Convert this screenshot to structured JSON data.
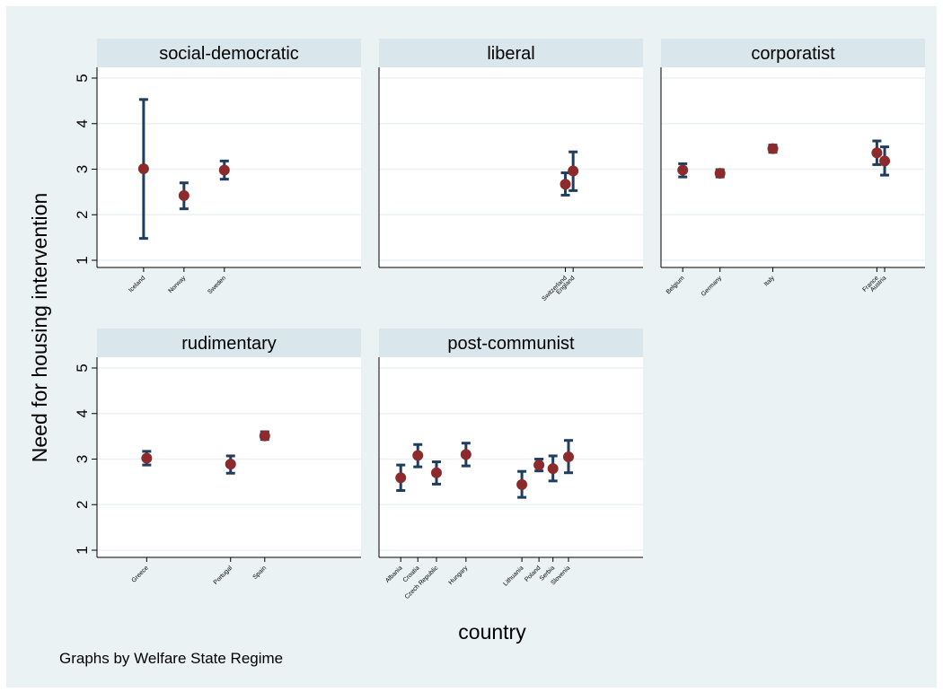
{
  "chart_data": {
    "type": "scatter",
    "subtype": "point estimates with confidence intervals, faceted by group",
    "ylabel": "Need for housing intervention",
    "xlabel": "country",
    "note": "Graphs by Welfare State Regime",
    "ylim": [
      1,
      5
    ],
    "yticks": [
      1,
      2,
      3,
      4,
      5
    ],
    "grid": true,
    "colors": {
      "background": "#eaf2f3",
      "plot_background": "#ffffff",
      "header_background": "#d9e6eb",
      "marker": "#8c2a2c",
      "error_bar": "#1f3d5e",
      "grid": "#eaf2f3"
    },
    "panels": [
      {
        "title": "social-democratic",
        "xlim": [
          0.5,
          9
        ],
        "points": [
          {
            "country": "Iceland",
            "x": 2,
            "y": 3.01,
            "lo": 1.48,
            "hi": 4.53
          },
          {
            "country": "Norway",
            "x": 3.3,
            "y": 2.42,
            "lo": 2.13,
            "hi": 2.7
          },
          {
            "country": "Sweden",
            "x": 4.6,
            "y": 2.98,
            "lo": 2.78,
            "hi": 3.18
          }
        ]
      },
      {
        "title": "liberal",
        "xlim": [
          0.5,
          9
        ],
        "points": [
          {
            "country": "Switzerland",
            "x": 6.5,
            "y": 2.67,
            "lo": 2.43,
            "hi": 2.92
          },
          {
            "country": "England",
            "x": 6.75,
            "y": 2.96,
            "lo": 2.53,
            "hi": 3.38
          }
        ]
      },
      {
        "title": "corporatist",
        "xlim": [
          0.5,
          9
        ],
        "points": [
          {
            "country": "Belgium",
            "x": 1.2,
            "y": 2.98,
            "lo": 2.83,
            "hi": 3.12
          },
          {
            "country": "Germany",
            "x": 2.4,
            "y": 2.91,
            "lo": 2.83,
            "hi": 2.99
          },
          {
            "country": "Italy",
            "x": 4.1,
            "y": 3.45,
            "lo": 3.37,
            "hi": 3.53
          },
          {
            "country": "France",
            "x": 7.45,
            "y": 3.36,
            "lo": 3.1,
            "hi": 3.62
          },
          {
            "country": "Austria",
            "x": 7.7,
            "y": 3.18,
            "lo": 2.87,
            "hi": 3.49
          }
        ]
      },
      {
        "title": "rudimentary",
        "xlim": [
          0.5,
          9
        ],
        "points": [
          {
            "country": "Greece",
            "x": 2.1,
            "y": 3.02,
            "lo": 2.87,
            "hi": 3.17
          },
          {
            "country": "Portugal",
            "x": 4.8,
            "y": 2.89,
            "lo": 2.69,
            "hi": 3.07
          },
          {
            "country": "Spain",
            "x": 5.9,
            "y": 3.51,
            "lo": 3.43,
            "hi": 3.6
          }
        ]
      },
      {
        "title": "post-communist",
        "xlim": [
          0.5,
          9
        ],
        "points": [
          {
            "country": "Albania",
            "x": 1.2,
            "y": 2.59,
            "lo": 2.31,
            "hi": 2.87
          },
          {
            "country": "Croatia",
            "x": 1.75,
            "y": 3.08,
            "lo": 2.83,
            "hi": 3.32
          },
          {
            "country": "Czech Republic",
            "x": 2.35,
            "y": 2.7,
            "lo": 2.45,
            "hi": 2.94
          },
          {
            "country": "Hungary",
            "x": 3.3,
            "y": 3.1,
            "lo": 2.85,
            "hi": 3.35
          },
          {
            "country": "Lithuania",
            "x": 5.1,
            "y": 2.44,
            "lo": 2.16,
            "hi": 2.73
          },
          {
            "country": "Poland",
            "x": 5.65,
            "y": 2.87,
            "lo": 2.74,
            "hi": 3.0
          },
          {
            "country": "Serbia",
            "x": 6.1,
            "y": 2.79,
            "lo": 2.52,
            "hi": 3.07
          },
          {
            "country": "Slovenia",
            "x": 6.6,
            "y": 3.05,
            "lo": 2.7,
            "hi": 3.41
          }
        ]
      }
    ]
  }
}
